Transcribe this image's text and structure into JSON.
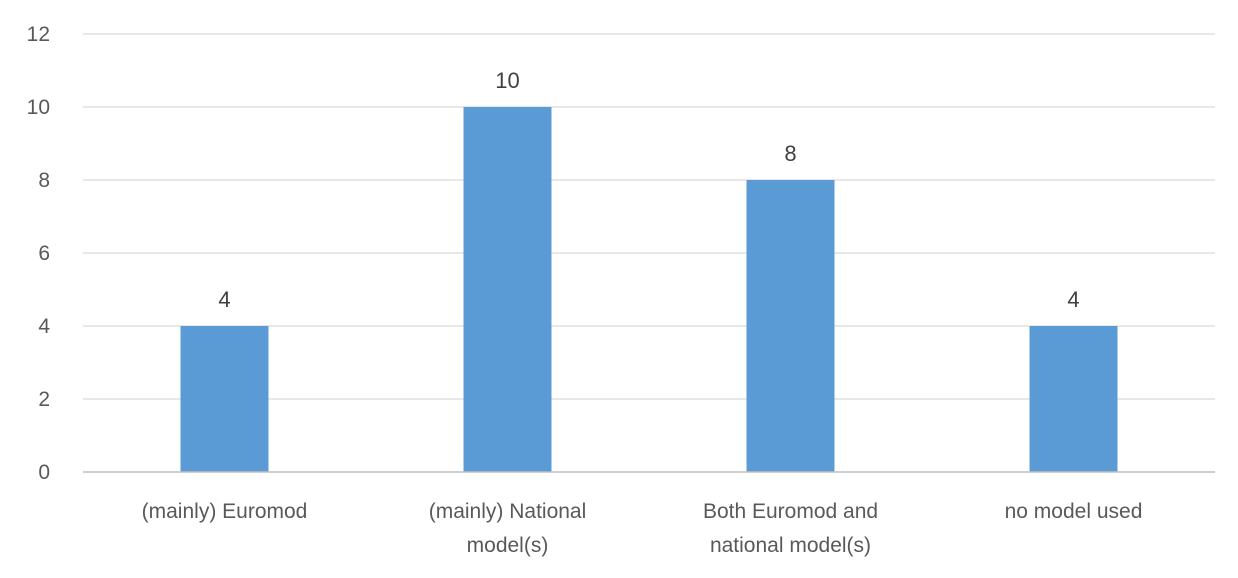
{
  "chart_data": {
    "type": "bar",
    "categories": [
      [
        "(mainly) Euromod"
      ],
      [
        "(mainly) National",
        "model(s)"
      ],
      [
        "Both Euromod and",
        "national model(s)"
      ],
      [
        "no model used"
      ]
    ],
    "values": [
      4,
      10,
      8,
      4
    ],
    "data_labels": [
      "4",
      "10",
      "8",
      "4"
    ],
    "ylim": [
      0,
      12
    ],
    "yticks": [
      "0",
      "2",
      "4",
      "6",
      "8",
      "10",
      "12"
    ],
    "grid": true,
    "bar_color": "#5b9bd5",
    "title": "",
    "xlabel": "",
    "ylabel": ""
  }
}
